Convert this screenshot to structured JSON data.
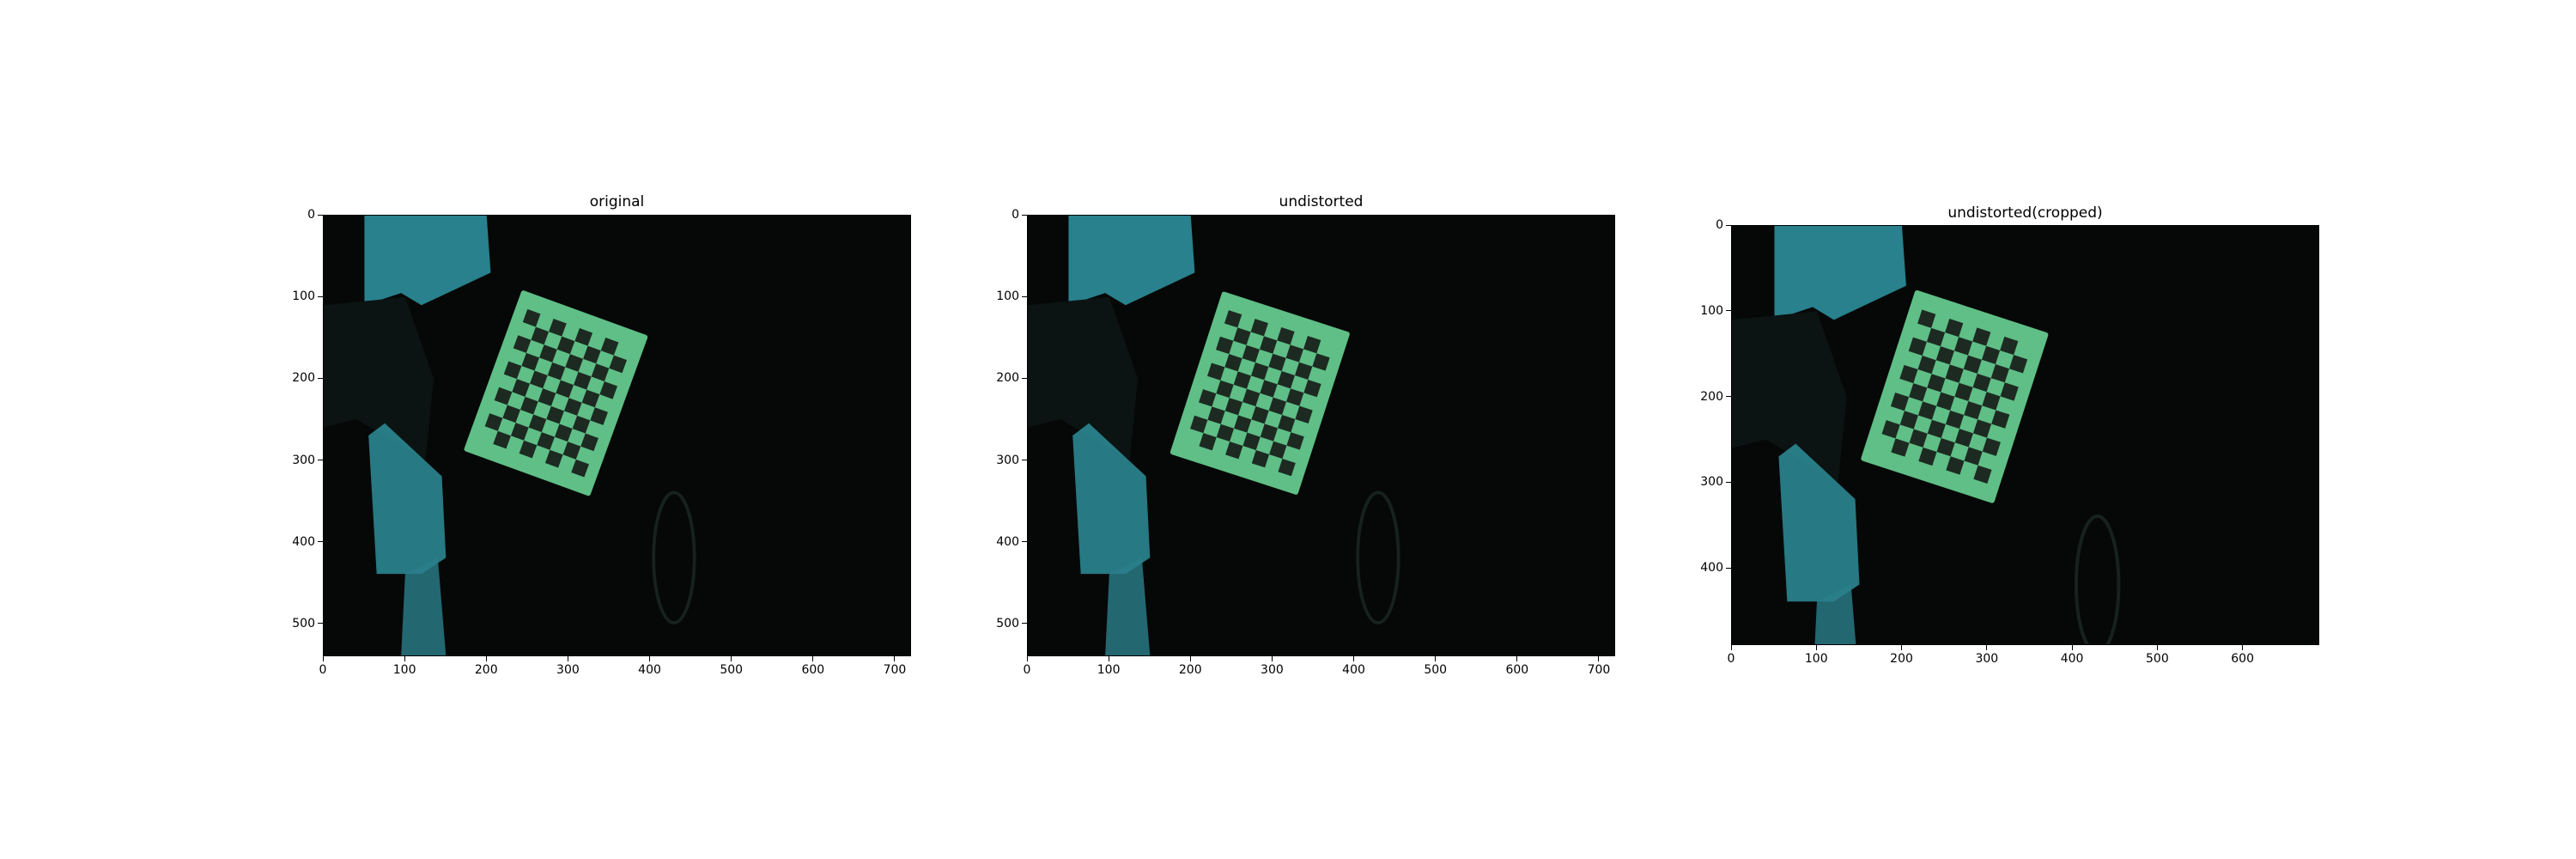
{
  "figure": {
    "panels": [
      {
        "title": "original",
        "xticks": [
          "0",
          "100",
          "200",
          "300",
          "400",
          "500",
          "600",
          "700"
        ],
        "yticks": [
          "0",
          "100",
          "200",
          "300",
          "400",
          "500"
        ],
        "x_range": [
          0,
          720
        ],
        "y_range": [
          0,
          540
        ],
        "board": {
          "cx": 285,
          "cy": 218,
          "angle": 20
        }
      },
      {
        "title": "undistorted",
        "xticks": [
          "0",
          "100",
          "200",
          "300",
          "400",
          "500",
          "600",
          "700"
        ],
        "yticks": [
          "0",
          "100",
          "200",
          "300",
          "400",
          "500"
        ],
        "x_range": [
          0,
          720
        ],
        "y_range": [
          0,
          540
        ],
        "board": {
          "cx": 285,
          "cy": 218,
          "angle": 18
        }
      },
      {
        "title": "undistorted(cropped)",
        "xticks": [
          "0",
          "100",
          "200",
          "300",
          "400",
          "500",
          "600"
        ],
        "yticks": [
          "0",
          "100",
          "200",
          "300",
          "400"
        ],
        "x_range": [
          0,
          690
        ],
        "y_range": [
          0,
          490
        ],
        "board": {
          "cx": 262,
          "cy": 200,
          "angle": 18
        }
      }
    ],
    "colors": {
      "background": "#060807",
      "board": "#5fbf86",
      "square": "#1d2a22",
      "cyan_surface": "#2f96a3"
    }
  }
}
